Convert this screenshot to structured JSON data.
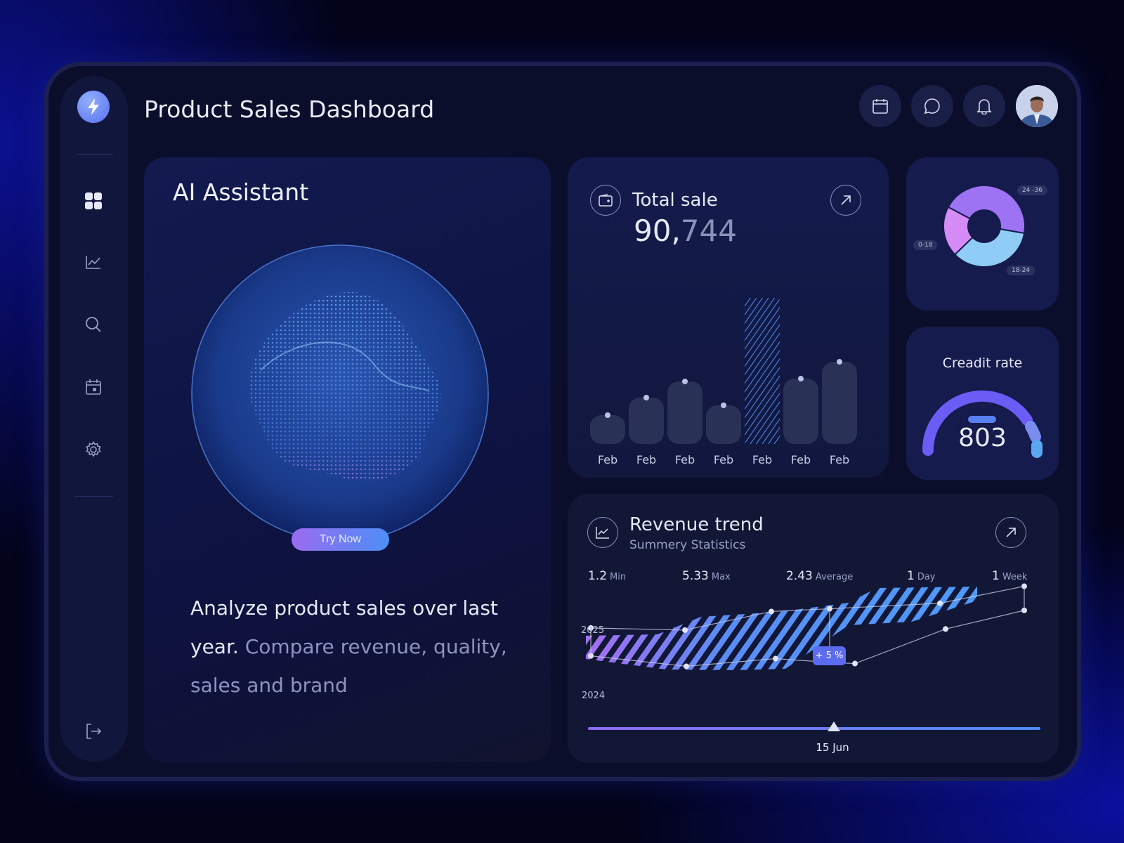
{
  "header": {
    "title": "Product Sales Dashboard",
    "icons": [
      "calendar-icon",
      "chat-icon",
      "bell-icon"
    ],
    "avatar": "user-avatar"
  },
  "sidebar": {
    "logo": "lightning-icon",
    "items": [
      "dashboard-icon",
      "analytics-icon",
      "search-icon",
      "calendar-icon",
      "settings-icon"
    ],
    "logout": "logout-icon",
    "active": "dashboard"
  },
  "ai_card": {
    "title": "AI Assistant",
    "button": "Try Now",
    "text_strong": "Analyze product sales over last year.",
    "text_muted": " Compare revenue, quality, sales and brand"
  },
  "total_sale": {
    "title": "Total sale",
    "value_main": "90,",
    "value_muted": "744"
  },
  "age_donut": {
    "segments": [
      {
        "label": "24 -36",
        "share": 45,
        "color": "#9d72f3"
      },
      {
        "label": "18-24",
        "share": 35,
        "color": "#8fcdf6"
      },
      {
        "label": "0-18",
        "share": 20,
        "color": "#d58cf7"
      }
    ]
  },
  "credit": {
    "title": "Creadit rate",
    "value": "803",
    "gauge_level": 0.8
  },
  "revenue": {
    "title": "Revenue trend",
    "subtitle": "Summery Statistics",
    "stats": [
      {
        "value": "1.2",
        "unit": "Min"
      },
      {
        "value": "5.33",
        "unit": "Max"
      },
      {
        "value": "2.43",
        "unit": "Average"
      },
      {
        "value": "1",
        "unit": "Day"
      },
      {
        "value": "1",
        "unit": "Week"
      }
    ],
    "badge": "+ 5 %",
    "slider_label": "15 Jun",
    "slider_position": 0.54
  },
  "chart_data": [
    {
      "type": "bar",
      "categories": [
        "Feb",
        "Feb",
        "Feb",
        "Feb",
        "Feb",
        "Feb",
        "Feb"
      ],
      "values": [
        41,
        66,
        89,
        55,
        208,
        93,
        117
      ],
      "highlighted_index": 4
    },
    {
      "type": "line",
      "series": [
        {
          "name": "2025",
          "values": [
            8.2,
            7.8,
            11.2,
            11.7,
            12.7,
            15.8
          ]
        },
        {
          "name": "2024",
          "values": [
            3.1,
            1.2,
            2.6,
            1.9,
            1.7,
            8.0,
            11.4
          ]
        }
      ]
    }
  ]
}
